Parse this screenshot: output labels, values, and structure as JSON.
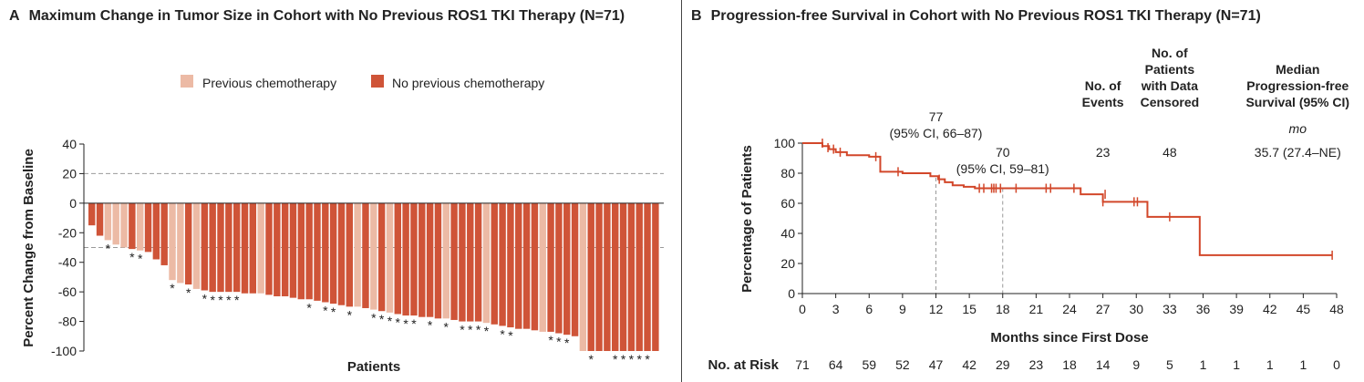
{
  "colors": {
    "prev": "#ecbaa5",
    "noprev": "#cf5438",
    "km": "#d2472a",
    "ref": "#999999",
    "axis": "#222222"
  },
  "panel_a": {
    "letter": "A",
    "title": "Maximum Change in Tumor Size in Cohort with No Previous ROS1 TKI Therapy (N=71)"
  },
  "panel_b": {
    "letter": "B",
    "title": "Progression-free Survival in Cohort with No Previous ROS1 TKI Therapy (N=71)",
    "table": {
      "headers": {
        "events": [
          "No. of",
          "Events"
        ],
        "censored": [
          "No. of",
          "Patients",
          "with Data",
          "Censored"
        ],
        "median": [
          "Median",
          "Progression-free",
          "Survival (95% CI)"
        ]
      },
      "unit": "mo",
      "events": "23",
      "censored": "48",
      "median": "35.7 (27.4–NE)"
    }
  },
  "chart_data": [
    {
      "type": "bar",
      "legend": [
        "Previous chemotherapy",
        "No previous chemotherapy"
      ],
      "legend_placement": "top-center",
      "xlabel": "Patients",
      "ylabel": "Percent Change from Baseline",
      "ylim": [
        -100,
        40
      ],
      "yticks": [
        40,
        20,
        0,
        -20,
        -40,
        -60,
        -80,
        -100
      ],
      "reference_lines": [
        20,
        -30
      ],
      "marker_symbol": "*",
      "values": [
        -15,
        -22,
        -25,
        -28,
        -30,
        -31,
        -32,
        -33,
        -38,
        -42,
        -52,
        -54,
        -55,
        -58,
        -59,
        -60,
        -60,
        -60,
        -60,
        -61,
        -61,
        -61,
        -62,
        -63,
        -63,
        -64,
        -65,
        -65,
        -66,
        -67,
        -68,
        -69,
        -70,
        -70,
        -71,
        -72,
        -73,
        -74,
        -75,
        -76,
        -76,
        -77,
        -77,
        -78,
        -78,
        -79,
        -80,
        -80,
        -80,
        -81,
        -82,
        -83,
        -84,
        -85,
        -85,
        -86,
        -87,
        -87,
        -88,
        -89,
        -90,
        -100,
        -100,
        -100,
        -100,
        -100,
        -100,
        -100,
        -100,
        -100,
        -100
      ],
      "previous_chemotherapy": [
        false,
        false,
        true,
        true,
        true,
        false,
        true,
        false,
        false,
        false,
        true,
        true,
        false,
        true,
        false,
        false,
        false,
        false,
        false,
        false,
        false,
        true,
        false,
        false,
        false,
        false,
        false,
        false,
        false,
        false,
        false,
        false,
        false,
        true,
        false,
        true,
        false,
        true,
        false,
        false,
        false,
        false,
        false,
        false,
        true,
        false,
        false,
        false,
        false,
        true,
        false,
        false,
        false,
        false,
        false,
        false,
        true,
        false,
        false,
        false,
        false,
        true,
        false,
        false,
        false,
        false,
        false,
        false,
        false,
        false,
        false
      ],
      "marked": [
        false,
        false,
        true,
        false,
        false,
        true,
        true,
        false,
        false,
        false,
        true,
        false,
        true,
        false,
        true,
        true,
        true,
        true,
        true,
        false,
        false,
        false,
        false,
        false,
        false,
        false,
        false,
        true,
        false,
        true,
        true,
        false,
        true,
        false,
        false,
        true,
        true,
        true,
        true,
        true,
        true,
        false,
        true,
        false,
        true,
        false,
        true,
        true,
        true,
        true,
        false,
        true,
        true,
        false,
        false,
        false,
        false,
        true,
        true,
        true,
        false,
        false,
        true,
        false,
        false,
        true,
        true,
        true,
        true,
        true,
        false
      ]
    },
    {
      "type": "line",
      "xlabel": "Months since First Dose",
      "ylabel": "Percentage of Patients",
      "xlim": [
        0,
        48
      ],
      "ylim": [
        0,
        100
      ],
      "xticks": [
        0,
        3,
        6,
        9,
        12,
        15,
        18,
        21,
        24,
        27,
        30,
        33,
        36,
        39,
        42,
        45,
        48
      ],
      "yticks": [
        0,
        20,
        40,
        60,
        80,
        100
      ],
      "steps": [
        [
          0,
          100
        ],
        [
          1.8,
          98
        ],
        [
          2.4,
          96
        ],
        [
          3.0,
          94
        ],
        [
          4.0,
          92
        ],
        [
          6.0,
          91
        ],
        [
          7.0,
          81
        ],
        [
          9.0,
          80
        ],
        [
          11.5,
          78
        ],
        [
          12.2,
          76
        ],
        [
          12.8,
          74
        ],
        [
          13.5,
          72
        ],
        [
          14.5,
          71
        ],
        [
          15.5,
          70
        ],
        [
          25.0,
          66
        ],
        [
          27.0,
          61
        ],
        [
          31.0,
          51
        ],
        [
          35.7,
          25.5
        ],
        [
          47.6,
          25.5
        ]
      ],
      "censor_marks": [
        [
          1.8,
          100
        ],
        [
          2.3,
          97
        ],
        [
          2.8,
          96
        ],
        [
          3.4,
          94
        ],
        [
          6.6,
          91
        ],
        [
          8.6,
          81
        ],
        [
          12.3,
          76
        ],
        [
          15.9,
          70
        ],
        [
          16.3,
          70
        ],
        [
          17.0,
          70
        ],
        [
          17.2,
          70
        ],
        [
          17.4,
          70
        ],
        [
          17.8,
          70
        ],
        [
          19.2,
          70
        ],
        [
          21.9,
          70
        ],
        [
          22.3,
          70
        ],
        [
          24.4,
          70
        ],
        [
          27.2,
          66
        ],
        [
          27.0,
          61
        ],
        [
          29.8,
          61
        ],
        [
          30.1,
          61
        ],
        [
          33.0,
          51
        ],
        [
          47.6,
          25.5
        ]
      ],
      "reference_lines": [
        12,
        18
      ],
      "annotations": [
        {
          "x": 12,
          "y": 77,
          "lines": [
            "77",
            "(95% CI, 66–87)"
          ]
        },
        {
          "x": 18,
          "y": 70,
          "lines": [
            "70",
            "(95% CI, 59–81)"
          ]
        }
      ],
      "at_risk_label": "No. at Risk",
      "at_risk": [
        "71",
        "64",
        "59",
        "52",
        "47",
        "42",
        "29",
        "23",
        "18",
        "14",
        "9",
        "5",
        "1",
        "1",
        "1",
        "1",
        "0"
      ]
    }
  ]
}
